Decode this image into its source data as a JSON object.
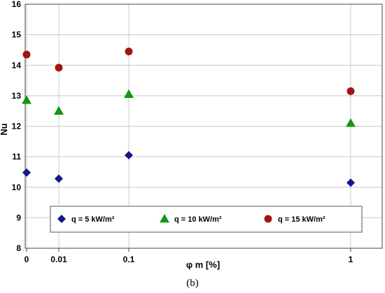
{
  "caption": "(b)",
  "chart_data": {
    "type": "scatter",
    "title": "",
    "xlabel": "φ m [%]",
    "ylabel": "Nu",
    "x_positions": [
      0,
      0.01,
      0.1,
      1
    ],
    "x_tick_labels": [
      "0",
      "0.01",
      "0.1",
      "1"
    ],
    "ylim": [
      8,
      16
    ],
    "y_ticks": [
      8,
      9,
      10,
      11,
      12,
      13,
      14,
      15,
      16
    ],
    "grid": true,
    "legend_placement": "bottom-inside",
    "series": [
      {
        "name": "q =  5 kW/m²",
        "marker": "diamond",
        "color": "#14148c",
        "x": [
          0,
          0.01,
          0.1,
          1
        ],
        "y": [
          10.48,
          10.28,
          11.05,
          10.15
        ]
      },
      {
        "name": "q = 10 kW/m²",
        "marker": "triangle",
        "color": "#149614",
        "x": [
          0,
          0.01,
          0.1,
          1
        ],
        "y": [
          12.85,
          12.5,
          13.05,
          12.1
        ]
      },
      {
        "name": "q = 15 kW/m²",
        "marker": "circle",
        "color": "#a01414",
        "x": [
          0,
          0.01,
          0.1,
          1
        ],
        "y": [
          14.35,
          13.92,
          14.45,
          13.15
        ]
      }
    ]
  }
}
